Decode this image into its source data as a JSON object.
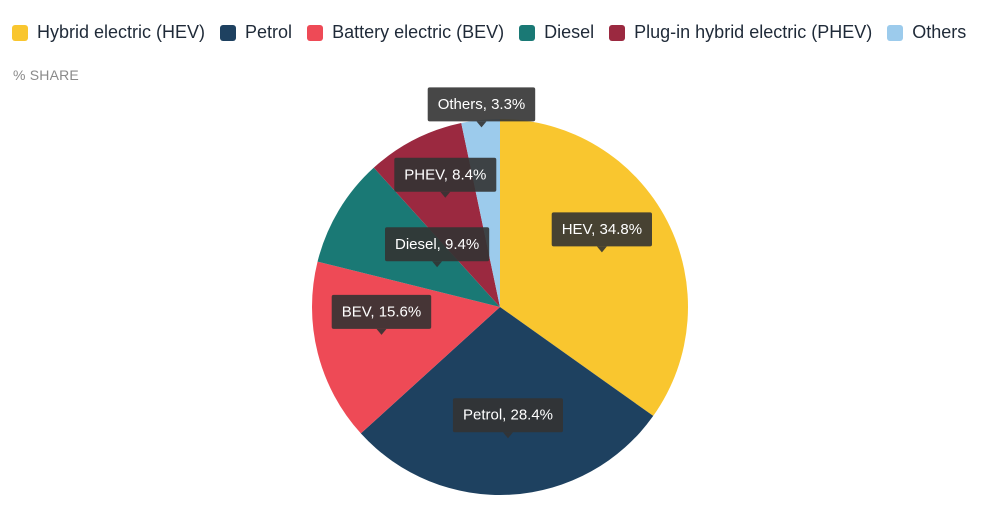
{
  "unit_label": "% SHARE",
  "legend": [
    {
      "label": "Hybrid electric (HEV)",
      "color": "#f9c62f"
    },
    {
      "label": "Petrol",
      "color": "#1e4160"
    },
    {
      "label": "Battery electric (BEV)",
      "color": "#ee4a56"
    },
    {
      "label": "Diesel",
      "color": "#1a7975"
    },
    {
      "label": "Plug-in hybrid electric (PHEV)",
      "color": "#9b2940"
    },
    {
      "label": "Others",
      "color": "#9ccbec"
    }
  ],
  "chart_data": {
    "type": "pie",
    "start_angle_deg": 0,
    "direction": "clockwise",
    "slices": [
      {
        "name": "Hybrid electric (HEV)",
        "short": "HEV",
        "value": 34.8,
        "label": "HEV, 34.8%",
        "color": "#f9c62f"
      },
      {
        "name": "Petrol",
        "short": "Petrol",
        "value": 28.4,
        "label": "Petrol, 28.4%",
        "color": "#1e4160"
      },
      {
        "name": "Battery electric (BEV)",
        "short": "BEV",
        "value": 15.6,
        "label": "BEV, 15.6%",
        "color": "#ee4a56"
      },
      {
        "name": "Diesel",
        "short": "Diesel",
        "value": 9.4,
        "label": "Diesel, 9.4%",
        "color": "#1a7975"
      },
      {
        "name": "Plug-in hybrid electric (PHEV)",
        "short": "PHEV",
        "value": 8.4,
        "label": "PHEV, 8.4%",
        "color": "#9b2940"
      },
      {
        "name": "Others",
        "short": "Others",
        "value": 3.3,
        "label": "Others, 3.3%",
        "color": "#9ccbec"
      }
    ]
  }
}
